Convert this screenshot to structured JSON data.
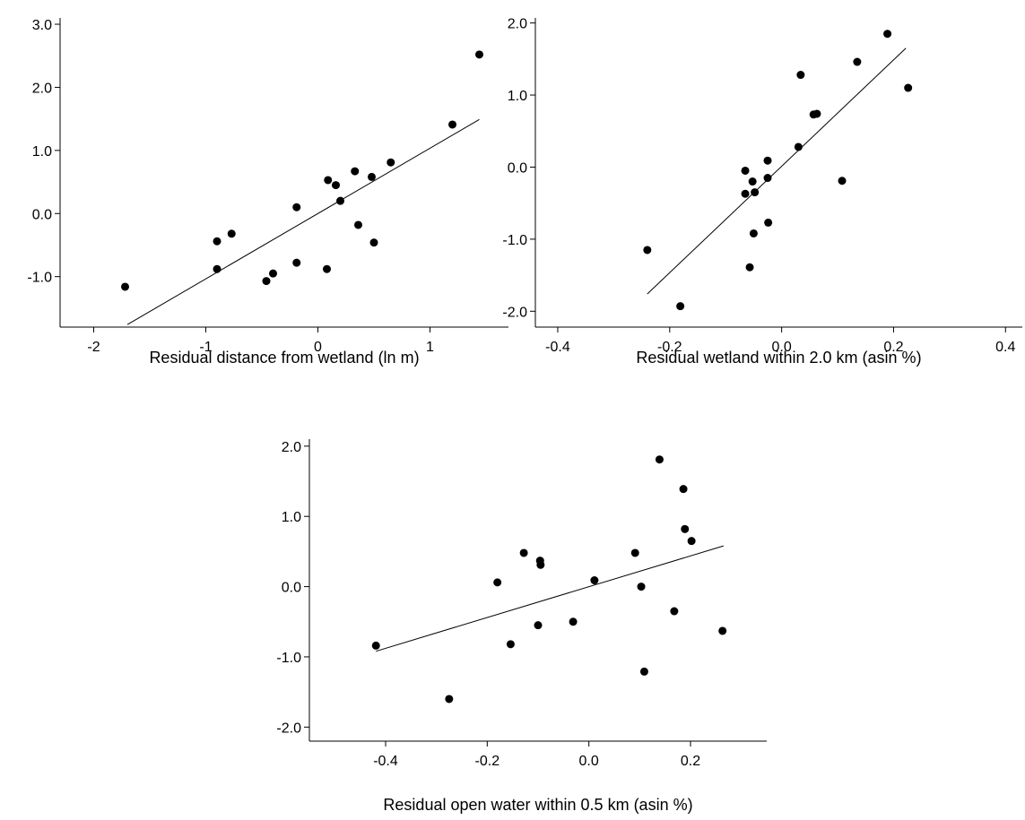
{
  "chart_data": [
    {
      "type": "scatter",
      "title": "",
      "xlabel": "Residual distance from wetland (ln m)",
      "ylabel": "",
      "xlim": [
        -2.3,
        1.7
      ],
      "ylim": [
        -1.8,
        3.1
      ],
      "xticks": [
        -2,
        -1,
        0,
        1
      ],
      "xtick_labels": [
        "-2",
        "-1",
        "0",
        "1"
      ],
      "yticks": [
        -1,
        0,
        1,
        2,
        3
      ],
      "ytick_labels": [
        "-1.0",
        "0.0",
        "1.0",
        "2.0",
        "3.0"
      ],
      "grid": false,
      "points": [
        {
          "x": -1.72,
          "y": -1.16
        },
        {
          "x": -0.9,
          "y": -0.88
        },
        {
          "x": -0.9,
          "y": -0.44
        },
        {
          "x": -0.77,
          "y": -0.32
        },
        {
          "x": -0.46,
          "y": -1.07
        },
        {
          "x": -0.4,
          "y": -0.95
        },
        {
          "x": -0.19,
          "y": -0.78
        },
        {
          "x": -0.19,
          "y": 0.1
        },
        {
          "x": 0.08,
          "y": -0.88
        },
        {
          "x": 0.09,
          "y": 0.53
        },
        {
          "x": 0.16,
          "y": 0.45
        },
        {
          "x": 0.2,
          "y": 0.2
        },
        {
          "x": 0.33,
          "y": 0.67
        },
        {
          "x": 0.36,
          "y": -0.18
        },
        {
          "x": 0.48,
          "y": 0.58
        },
        {
          "x": 0.5,
          "y": -0.46
        },
        {
          "x": 0.65,
          "y": 0.81
        },
        {
          "x": 1.2,
          "y": 1.41
        },
        {
          "x": 1.44,
          "y": 2.52
        }
      ],
      "fit_line": {
        "x": [
          -1.7,
          1.44
        ],
        "y": [
          -1.76,
          1.49
        ]
      }
    },
    {
      "type": "scatter",
      "title": "",
      "xlabel": "Residual wetland within 2.0 km (asin %)",
      "ylabel": "",
      "xlim": [
        -0.44,
        0.43
      ],
      "ylim": [
        -2.22,
        2.07
      ],
      "xticks": [
        -0.4,
        -0.2,
        0.0,
        0.2,
        0.4
      ],
      "xtick_labels": [
        "-0.4",
        "-0.2",
        "0.0",
        "0.2",
        "0.4"
      ],
      "yticks": [
        -2,
        -1,
        0,
        1,
        2
      ],
      "ytick_labels": [
        "-2.0",
        "-1.0",
        "0.0",
        "1.0",
        "2.0"
      ],
      "grid": false,
      "points": [
        {
          "x": -0.24,
          "y": -1.15
        },
        {
          "x": -0.181,
          "y": -1.93
        },
        {
          "x": -0.065,
          "y": -0.05
        },
        {
          "x": -0.065,
          "y": -0.37
        },
        {
          "x": -0.057,
          "y": -1.39
        },
        {
          "x": -0.052,
          "y": -0.2
        },
        {
          "x": -0.05,
          "y": -0.92
        },
        {
          "x": -0.048,
          "y": -0.35
        },
        {
          "x": -0.025,
          "y": 0.09
        },
        {
          "x": -0.025,
          "y": -0.15
        },
        {
          "x": -0.024,
          "y": -0.77
        },
        {
          "x": 0.03,
          "y": 0.28
        },
        {
          "x": 0.034,
          "y": 1.28
        },
        {
          "x": 0.057,
          "y": 0.73
        },
        {
          "x": 0.063,
          "y": 0.74
        },
        {
          "x": 0.108,
          "y": -0.19
        },
        {
          "x": 0.135,
          "y": 1.46
        },
        {
          "x": 0.189,
          "y": 1.85
        },
        {
          "x": 0.226,
          "y": 1.1
        }
      ],
      "fit_line": {
        "x": [
          -0.24,
          0.222
        ],
        "y": [
          -1.76,
          1.65
        ]
      }
    },
    {
      "type": "scatter",
      "title": "",
      "xlabel": "Residual open water within 0.5 km (asin %)",
      "ylabel": "",
      "xlim": [
        -0.55,
        0.35
      ],
      "ylim": [
        -2.2,
        2.1
      ],
      "xticks": [
        -0.4,
        -0.2,
        0.0,
        0.2
      ],
      "xtick_labels": [
        "-0.4",
        "-0.2",
        "0.0",
        "0.2"
      ],
      "yticks": [
        -2,
        -1,
        0,
        1,
        2
      ],
      "ytick_labels": [
        "-2.0",
        "-1.0",
        "0.0",
        "1.0",
        "2.0"
      ],
      "grid": false,
      "points": [
        {
          "x": -0.419,
          "y": -0.84
        },
        {
          "x": -0.275,
          "y": -1.6
        },
        {
          "x": -0.18,
          "y": 0.06
        },
        {
          "x": -0.154,
          "y": -0.82
        },
        {
          "x": -0.128,
          "y": 0.48
        },
        {
          "x": -0.1,
          "y": -0.55
        },
        {
          "x": -0.096,
          "y": 0.37
        },
        {
          "x": -0.095,
          "y": 0.31
        },
        {
          "x": -0.031,
          "y": -0.5
        },
        {
          "x": 0.011,
          "y": 0.09
        },
        {
          "x": 0.091,
          "y": 0.48
        },
        {
          "x": 0.103,
          "y": 0.0
        },
        {
          "x": 0.109,
          "y": -1.21
        },
        {
          "x": 0.139,
          "y": 1.81
        },
        {
          "x": 0.168,
          "y": -0.35
        },
        {
          "x": 0.186,
          "y": 1.39
        },
        {
          "x": 0.189,
          "y": 0.82
        },
        {
          "x": 0.202,
          "y": 0.65
        },
        {
          "x": 0.263,
          "y": -0.63
        }
      ],
      "fit_line": {
        "x": [
          -0.419,
          0.265
        ],
        "y": [
          -0.92,
          0.58
        ]
      }
    }
  ]
}
